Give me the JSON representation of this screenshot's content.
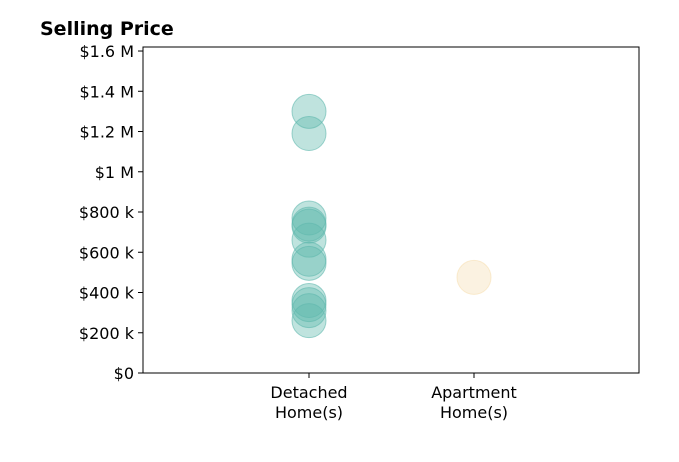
{
  "chart_data": {
    "type": "scatter",
    "title": "Selling Price",
    "xlabel": "",
    "ylabel": "",
    "categories": [
      "Detached\nHome(s)",
      "Apartment\nHome(s)"
    ],
    "ylim": [
      0,
      1620000
    ],
    "y_ticks": [
      0,
      200000,
      400000,
      600000,
      800000,
      1000000,
      1200000,
      1400000,
      1600000
    ],
    "y_tick_labels": [
      "$0",
      "$200 k",
      "$400 k",
      "$600 k",
      "$800 k",
      "$1 M",
      "$1.2 M",
      "$1.4 M",
      "$1.6 M"
    ],
    "grid": false,
    "legend": false,
    "series": [
      {
        "category": "Detached\nHome(s)",
        "color": "#5fb8ad",
        "values": [
          1300000,
          1190000,
          770000,
          740000,
          730000,
          660000,
          565000,
          545000,
          360000,
          340000,
          310000,
          260000
        ]
      },
      {
        "category": "Apartment\nHome(s)",
        "color": "#f6dfb3",
        "values": [
          475000
        ]
      }
    ]
  }
}
